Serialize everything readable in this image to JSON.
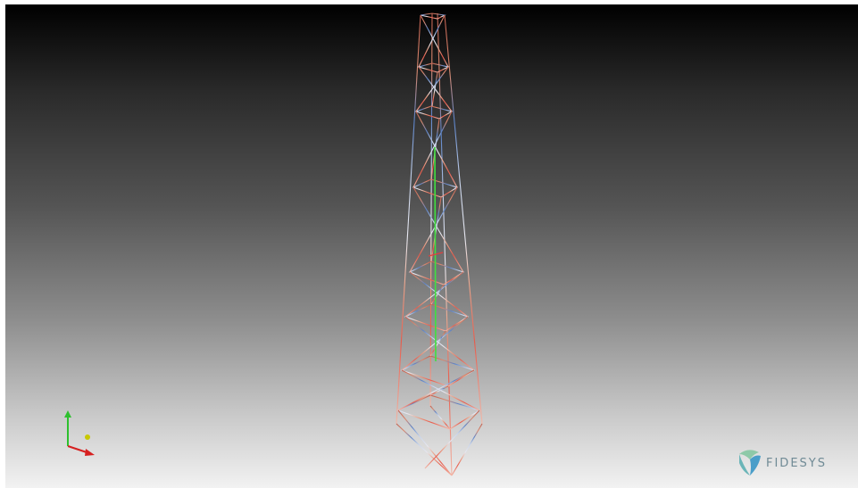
{
  "app": {
    "brand": "FIDESYS"
  },
  "viewport": {
    "background_top": "#000000",
    "background_bottom": "#f2f2f2"
  },
  "axes_triad": {
    "x_color": "#d62020",
    "y_color": "#2ec02e",
    "z_color": "#c8c800"
  },
  "model": {
    "colors": {
      "red": "#e8584a",
      "orange": "#e89070",
      "blue": "#5a82c8",
      "white": "#dde4f0",
      "center": "#40e040"
    },
    "icon": "lattice-tower-icon"
  },
  "logo": {
    "icon": "fidesys-logo-icon",
    "colors": [
      "#8ec9a8",
      "#4a9ec9"
    ]
  }
}
